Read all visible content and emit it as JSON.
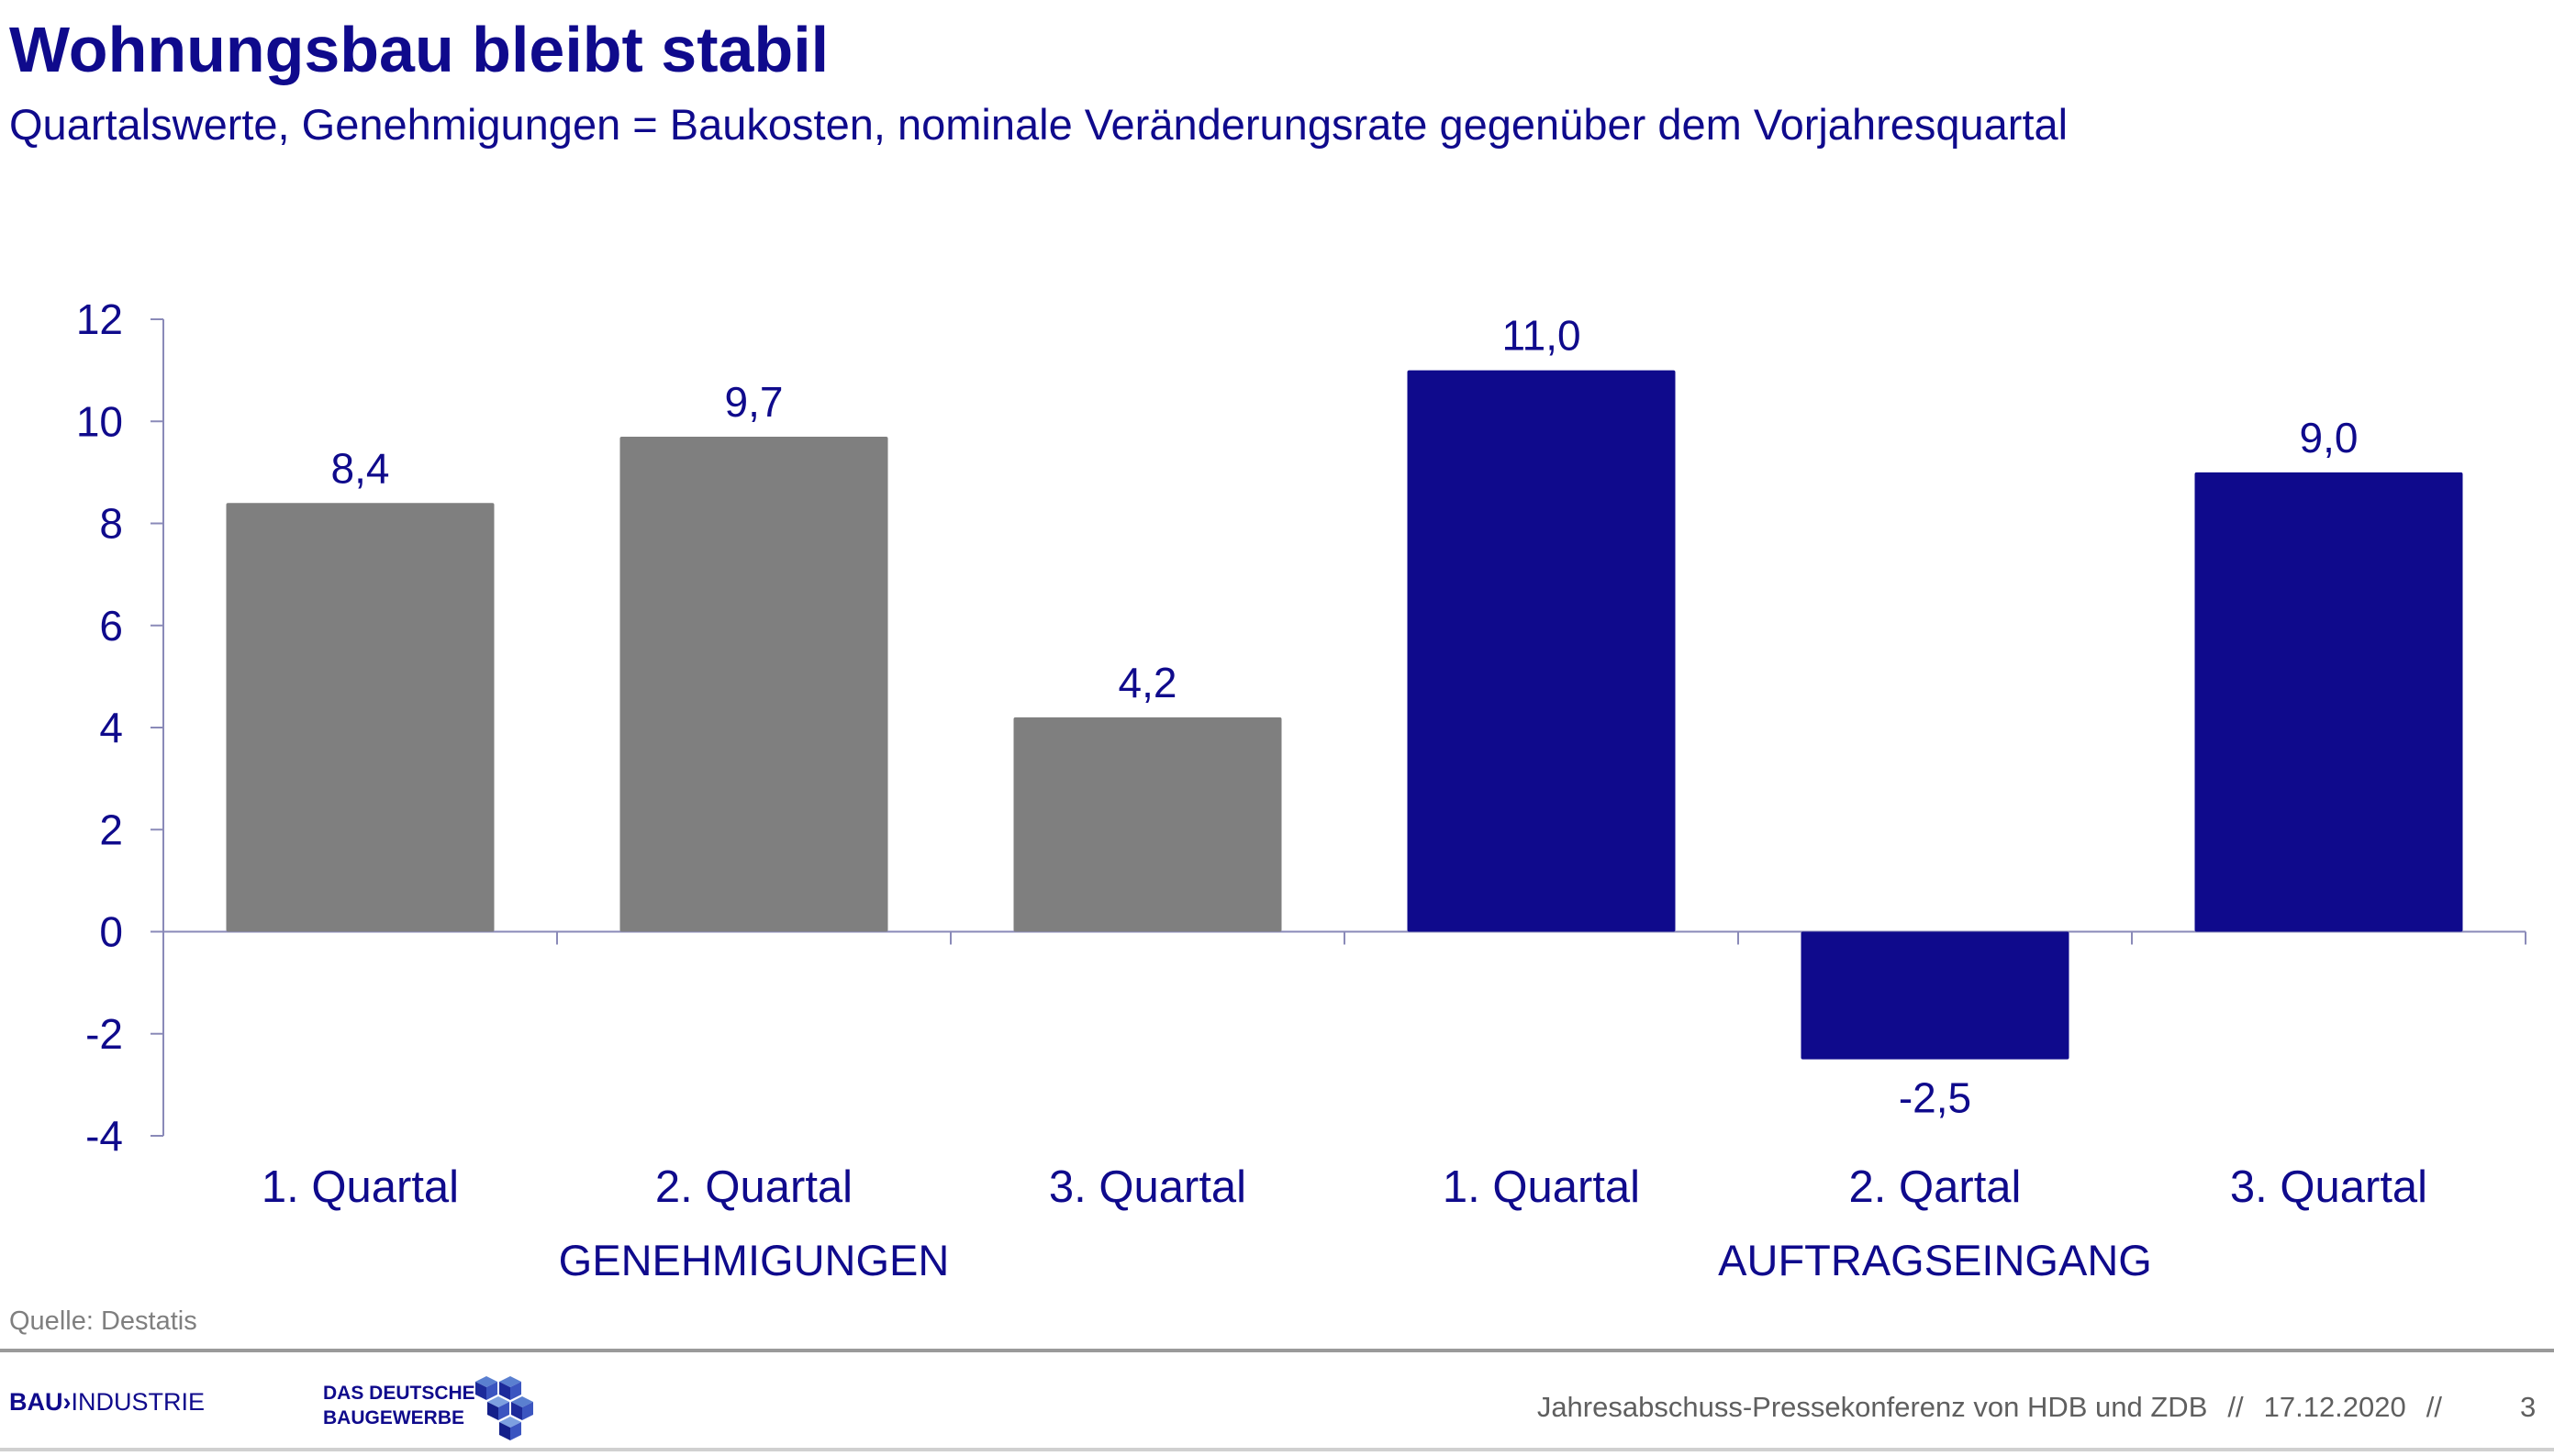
{
  "title": "Wohnungsbau bleibt stabil",
  "subtitle": "Quartalswerte, Genehmigungen = Baukosten, nominale Veränderungsrate gegenüber dem Vorjahresquartal",
  "source": "Quelle: Destatis",
  "footer": {
    "logo_bau_strong": "BAU",
    "logo_bau_rest": "INDUSTRIE",
    "logo_zdb_line1": "DAS DEUTSCHE",
    "logo_zdb_line2": "BAUGEWERBE",
    "event": "Jahresabschuss-Pressekonferenz von HDB und ZDB",
    "separator": "//",
    "date": "17.12.2020",
    "page": "3"
  },
  "colors": {
    "title": "#0f0a8c",
    "genehmigungen": "#7f7f7f",
    "auftragseingang": "#0f0a8c",
    "axis": "#8a8ab8",
    "text": "#0f0a8c"
  },
  "chart_data": {
    "type": "bar",
    "categories": [
      "1. Quartal",
      "2. Quartal",
      "3. Quartal",
      "1. Quartal",
      "2. Qartal",
      "3. Quartal"
    ],
    "values": [
      8.4,
      9.7,
      4.2,
      11.0,
      -2.5,
      9.0
    ],
    "value_labels": [
      "8,4",
      "9,7",
      "4,2",
      "11,0",
      "-2,5",
      "9,0"
    ],
    "groups": [
      {
        "label": "GENEHMIGUNGEN",
        "indices": [
          0,
          1,
          2
        ],
        "color": "#7f7f7f"
      },
      {
        "label": "AUFTRAGSEINGANG",
        "indices": [
          3,
          4,
          5
        ],
        "color": "#0f0a8c"
      }
    ],
    "ylim": [
      -4,
      12
    ],
    "yticks": [
      12,
      10,
      8,
      6,
      4,
      2,
      0,
      -2,
      -4
    ],
    "xlabel": "",
    "ylabel": "",
    "grid": false,
    "legend": "none"
  }
}
